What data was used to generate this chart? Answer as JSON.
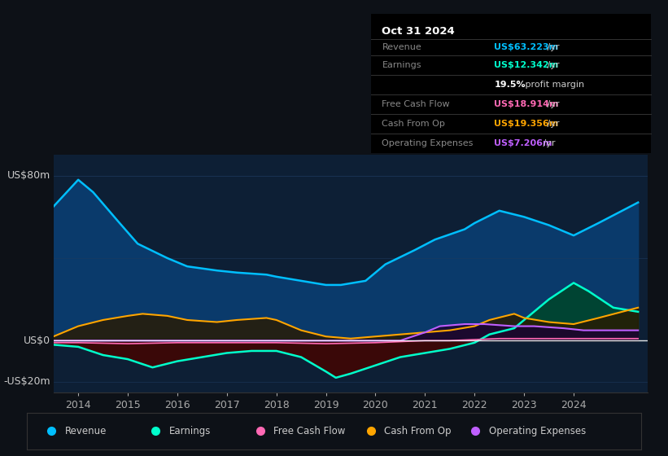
{
  "bg_color": "#0d1117",
  "plot_bg_color": "#0d1f35",
  "ylabel_top": "US$80m",
  "ylabel_zero": "US$0",
  "ylabel_bottom": "-US$20m",
  "ylim": [
    -25,
    90
  ],
  "xlim": [
    2013.5,
    2025.5
  ],
  "xticks": [
    2014,
    2015,
    2016,
    2017,
    2018,
    2019,
    2020,
    2021,
    2022,
    2023,
    2024
  ],
  "grid_color": "#1e3a5f",
  "zero_line_color": "#ffffff",
  "info_box": {
    "title": "Oct 31 2024",
    "rows": [
      {
        "label": "Revenue",
        "value": "US$63.223m",
        "suffix": " /yr",
        "value_color": "#00bfff"
      },
      {
        "label": "Earnings",
        "value": "US$12.342m",
        "suffix": " /yr",
        "value_color": "#00ffcc"
      },
      {
        "label": "",
        "value": "19.5%",
        "suffix": " profit margin",
        "value_color": "#ffffff"
      },
      {
        "label": "Free Cash Flow",
        "value": "US$18.914m",
        "suffix": " /yr",
        "value_color": "#ff69b4"
      },
      {
        "label": "Cash From Op",
        "value": "US$19.356m",
        "suffix": " /yr",
        "value_color": "#ffa500"
      },
      {
        "label": "Operating Expenses",
        "value": "US$7.206m",
        "suffix": " /yr",
        "value_color": "#bf5fff"
      }
    ]
  },
  "legend": [
    {
      "label": "Revenue",
      "color": "#00bfff"
    },
    {
      "label": "Earnings",
      "color": "#00ffcc"
    },
    {
      "label": "Free Cash Flow",
      "color": "#ff69b4"
    },
    {
      "label": "Cash From Op",
      "color": "#ffa500"
    },
    {
      "label": "Operating Expenses",
      "color": "#bf5fff"
    }
  ],
  "revenue": {
    "color": "#00bfff",
    "fill_color": "#0a3a6b",
    "x": [
      2013.5,
      2014.0,
      2014.3,
      2014.8,
      2015.2,
      2015.8,
      2016.2,
      2016.8,
      2017.2,
      2017.8,
      2018.0,
      2018.5,
      2019.0,
      2019.3,
      2019.8,
      2020.2,
      2020.8,
      2021.2,
      2021.8,
      2022.0,
      2022.5,
      2023.0,
      2023.5,
      2024.0,
      2024.5,
      2025.3
    ],
    "y": [
      65,
      78,
      72,
      58,
      47,
      40,
      36,
      34,
      33,
      32,
      31,
      29,
      27,
      27,
      29,
      37,
      44,
      49,
      54,
      57,
      63,
      60,
      56,
      51,
      57,
      67
    ]
  },
  "earnings": {
    "color": "#00ffcc",
    "fill_above_color": "#004433",
    "fill_below_color": "#3a0808",
    "x": [
      2013.5,
      2014.0,
      2014.5,
      2015.0,
      2015.5,
      2016.0,
      2016.5,
      2017.0,
      2017.5,
      2018.0,
      2018.5,
      2019.0,
      2019.2,
      2019.5,
      2020.0,
      2020.5,
      2021.0,
      2021.5,
      2022.0,
      2022.3,
      2022.8,
      2023.0,
      2023.5,
      2024.0,
      2024.3,
      2024.8,
      2025.3
    ],
    "y": [
      -2,
      -3,
      -7,
      -9,
      -13,
      -10,
      -8,
      -6,
      -5,
      -5,
      -8,
      -15,
      -18,
      -16,
      -12,
      -8,
      -6,
      -4,
      -1,
      3,
      6,
      10,
      20,
      28,
      24,
      16,
      14
    ]
  },
  "free_cash_flow": {
    "color": "#ff69b4",
    "x": [
      2013.5,
      2014.0,
      2015.0,
      2016.0,
      2017.0,
      2018.0,
      2019.0,
      2020.0,
      2021.0,
      2021.5,
      2022.0,
      2022.5,
      2023.0,
      2023.5,
      2024.0,
      2024.5,
      2025.3
    ],
    "y": [
      -1,
      -1,
      -1.5,
      -1,
      -1,
      -1,
      -1.5,
      -1,
      0,
      0,
      0.5,
      1,
      1,
      1,
      1,
      1,
      1
    ]
  },
  "cash_from_op": {
    "color": "#ffa500",
    "fill_color": "#2a1a00",
    "x": [
      2013.5,
      2014.0,
      2014.5,
      2015.0,
      2015.3,
      2015.8,
      2016.2,
      2016.8,
      2017.2,
      2017.8,
      2018.0,
      2018.5,
      2019.0,
      2019.5,
      2020.0,
      2020.5,
      2021.0,
      2021.5,
      2022.0,
      2022.3,
      2022.8,
      2023.0,
      2023.5,
      2024.0,
      2024.5,
      2025.3
    ],
    "y": [
      2,
      7,
      10,
      12,
      13,
      12,
      10,
      9,
      10,
      11,
      10,
      5,
      2,
      1,
      2,
      3,
      4,
      5,
      7,
      10,
      13,
      11,
      9,
      8,
      11,
      16
    ]
  },
  "operating_expenses": {
    "color": "#bf5fff",
    "fill_color": "#1a0533",
    "x": [
      2013.5,
      2014.0,
      2015.0,
      2016.0,
      2017.0,
      2018.0,
      2019.0,
      2020.0,
      2020.5,
      2021.0,
      2021.3,
      2021.8,
      2022.2,
      2022.8,
      2023.2,
      2023.8,
      2024.2,
      2024.8,
      2025.3
    ],
    "y": [
      0,
      0,
      0,
      0,
      0,
      0,
      0,
      0,
      0,
      4,
      7,
      8,
      8,
      7,
      7,
      6,
      5,
      5,
      5
    ]
  }
}
